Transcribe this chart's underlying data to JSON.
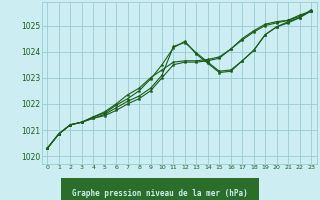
{
  "title": "Graphe pression niveau de la mer (hPa)",
  "background_color": "#cceef2",
  "grid_color": "#99ccd4",
  "line_color": "#1a5c1a",
  "text_color": "#1a5c1a",
  "xlabel_bg": "#2a6e2a",
  "xlabel_fg": "#cceef2",
  "xlim": [
    -0.5,
    23.5
  ],
  "ylim": [
    1019.7,
    1025.9
  ],
  "yticks": [
    1020,
    1021,
    1022,
    1023,
    1024,
    1025
  ],
  "xticks": [
    0,
    1,
    2,
    3,
    4,
    5,
    6,
    7,
    8,
    9,
    10,
    11,
    12,
    13,
    14,
    15,
    16,
    17,
    18,
    19,
    20,
    21,
    22,
    23
  ],
  "series": [
    [
      1020.3,
      1020.85,
      1021.2,
      1021.3,
      1021.45,
      1021.55,
      1021.75,
      1022.0,
      1022.2,
      1022.5,
      1023.0,
      1023.5,
      1023.6,
      1023.6,
      1023.65,
      1023.75,
      1024.1,
      1024.45,
      1024.75,
      1025.0,
      1025.1,
      1025.2,
      1025.35,
      1025.55
    ],
    [
      1020.3,
      1020.85,
      1021.2,
      1021.3,
      1021.45,
      1021.6,
      1021.85,
      1022.1,
      1022.3,
      1022.6,
      1023.1,
      1024.2,
      1024.35,
      1023.95,
      1023.6,
      1023.25,
      1023.3,
      1023.65,
      1024.05,
      1024.65,
      1024.95,
      1025.15,
      1025.3,
      1025.55
    ],
    [
      1020.3,
      1020.85,
      1021.2,
      1021.3,
      1021.5,
      1021.65,
      1021.95,
      1022.2,
      1022.5,
      1022.95,
      1023.5,
      1024.15,
      1024.4,
      1023.9,
      1023.55,
      1023.2,
      1023.25,
      1023.65,
      1024.05,
      1024.65,
      1024.95,
      1025.1,
      1025.3,
      1025.6
    ],
    [
      1020.3,
      1020.85,
      1021.2,
      1021.3,
      1021.5,
      1021.7,
      1022.0,
      1022.35,
      1022.6,
      1023.0,
      1023.3,
      1023.6,
      1023.65,
      1023.65,
      1023.7,
      1023.8,
      1024.1,
      1024.5,
      1024.8,
      1025.05,
      1025.15,
      1025.2,
      1025.4,
      1025.55
    ]
  ]
}
